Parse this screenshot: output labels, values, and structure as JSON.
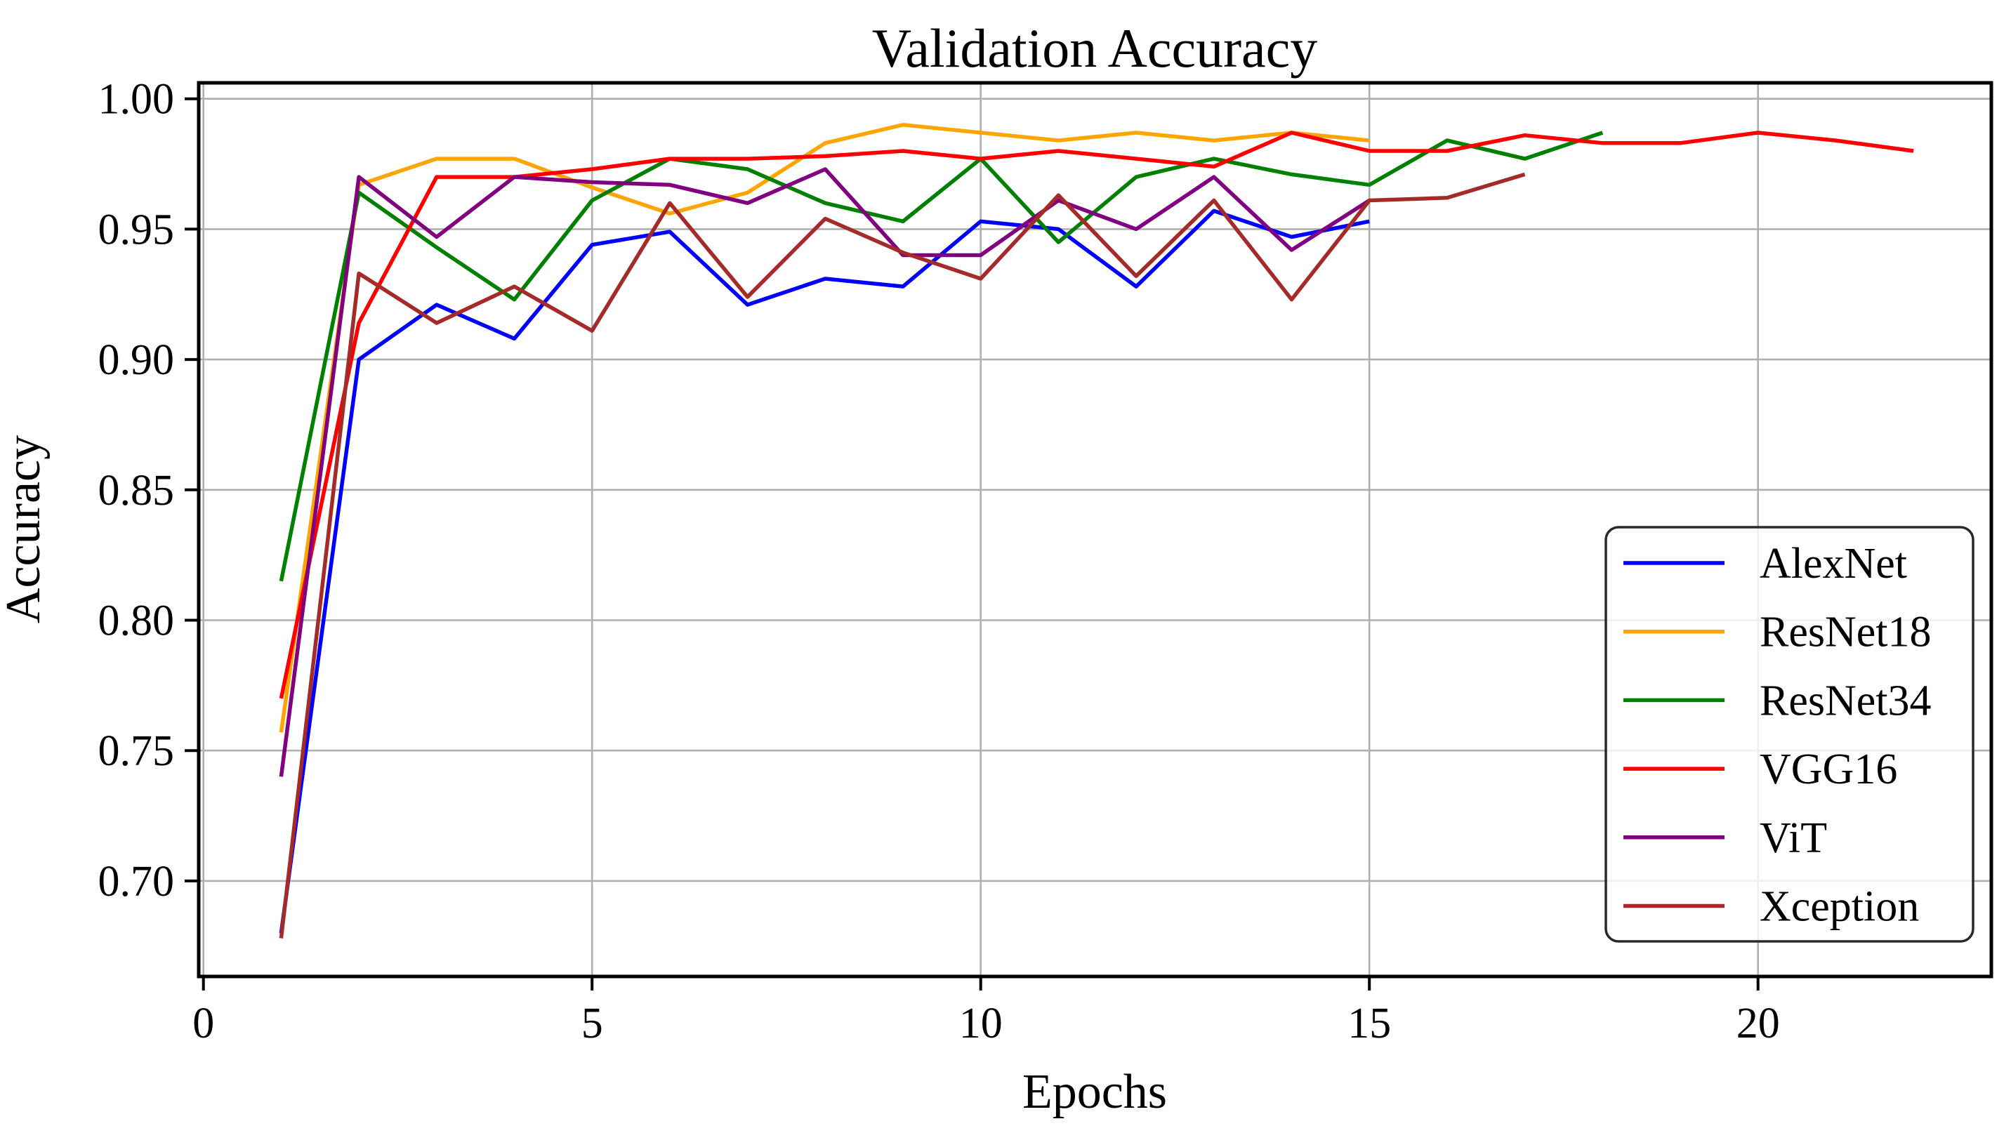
{
  "figure": {
    "background_color": "#ffffff"
  },
  "chart_data": {
    "type": "line",
    "title": "Validation Accuracy",
    "xlabel": "Epochs",
    "ylabel": "Accuracy",
    "xlim": [
      -0.06,
      23.0
    ],
    "ylim": [
      0.663,
      1.006
    ],
    "grid": true,
    "grid_color": "#b0b0b0",
    "spine_color": "#000000",
    "tick_color": "#000000",
    "legend_position": "lower right",
    "legend_border_color": "#2a2a2a",
    "legend_background": "rgba(255,255,255,0.8)",
    "x_start_epoch": 1,
    "xtick_values": [
      0,
      5,
      10,
      15,
      20
    ],
    "xtick_labels": [
      "0",
      "5",
      "10",
      "15",
      "20"
    ],
    "ytick_values": [
      0.7,
      0.75,
      0.8,
      0.85,
      0.9,
      0.95,
      1.0
    ],
    "ytick_labels": [
      "0.70",
      "0.75",
      "0.80",
      "0.85",
      "0.90",
      "0.95",
      "1.00"
    ],
    "series": [
      {
        "name": "AlexNet",
        "color": "#0000ff",
        "values": [
          0.68,
          0.9,
          0.921,
          0.908,
          0.944,
          0.949,
          0.921,
          0.931,
          0.928,
          0.953,
          0.95,
          0.928,
          0.957,
          0.947,
          0.953
        ]
      },
      {
        "name": "ResNet18",
        "color": "#ffa500",
        "values": [
          0.757,
          0.967,
          0.977,
          0.977,
          0.966,
          0.956,
          0.964,
          0.983,
          0.99,
          0.987,
          0.984,
          0.987,
          0.984,
          0.987,
          0.984
        ]
      },
      {
        "name": "ResNet34",
        "color": "#008000",
        "values": [
          0.815,
          0.964,
          0.943,
          0.923,
          0.961,
          0.977,
          0.973,
          0.96,
          0.953,
          0.977,
          0.945,
          0.97,
          0.977,
          0.971,
          0.967,
          0.984,
          0.977,
          0.987
        ]
      },
      {
        "name": "VGG16",
        "color": "#ff0000",
        "values": [
          0.77,
          0.914,
          0.97,
          0.97,
          0.973,
          0.977,
          0.977,
          0.978,
          0.98,
          0.977,
          0.98,
          0.977,
          0.974,
          0.987,
          0.98,
          0.98,
          0.986,
          0.983,
          0.983,
          0.987,
          0.984,
          0.98
        ]
      },
      {
        "name": "ViT",
        "color": "#800080",
        "values": [
          0.74,
          0.97,
          0.947,
          0.97,
          0.968,
          0.967,
          0.96,
          0.973,
          0.94,
          0.94,
          0.961,
          0.95,
          0.97,
          0.942,
          0.961
        ]
      },
      {
        "name": "Xception",
        "color": "#a52a2a",
        "values": [
          0.678,
          0.933,
          0.914,
          0.928,
          0.911,
          0.96,
          0.924,
          0.954,
          0.941,
          0.931,
          0.963,
          0.932,
          0.961,
          0.923,
          0.961,
          0.962,
          0.971
        ]
      }
    ]
  }
}
